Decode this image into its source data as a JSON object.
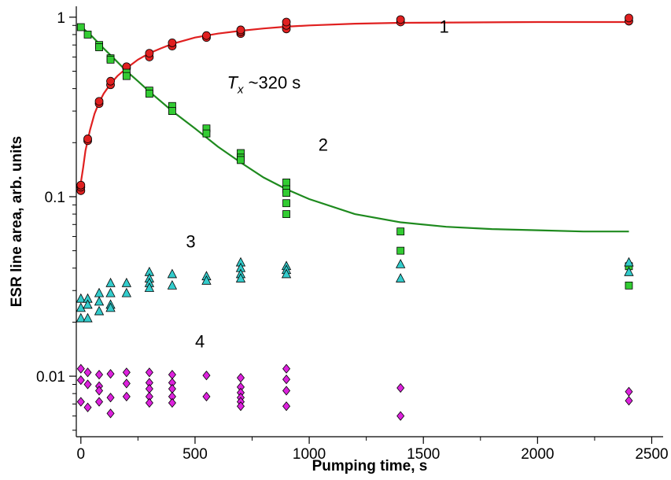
{
  "chart_data": {
    "type": "scatter",
    "title": "",
    "xlabel": "Pumping time, s",
    "ylabel": "ESR line area, arb. units",
    "xlim": [
      -20,
      2550
    ],
    "ylim": [
      0.0046,
      1.15
    ],
    "yscale": "log",
    "x_ticks": [
      0,
      500,
      1000,
      1500,
      2000,
      2500
    ],
    "x_tick_labels": [
      "0",
      "500",
      "1000",
      "1500",
      "2000",
      "2500"
    ],
    "y_ticks": [
      0.01,
      0.1,
      1
    ],
    "y_tick_labels": [
      "0.01",
      "0.1",
      "1"
    ],
    "grid": false,
    "legend": "none",
    "series": [
      {
        "id": "1",
        "marker": "circle",
        "color": "#e02020",
        "points": [
          [
            0,
            0.108
          ],
          [
            0,
            0.113
          ],
          [
            0,
            0.116
          ],
          [
            30,
            0.205
          ],
          [
            30,
            0.21
          ],
          [
            80,
            0.33
          ],
          [
            80,
            0.34
          ],
          [
            130,
            0.42
          ],
          [
            130,
            0.44
          ],
          [
            200,
            0.52
          ],
          [
            200,
            0.53
          ],
          [
            300,
            0.6
          ],
          [
            300,
            0.63
          ],
          [
            400,
            0.69
          ],
          [
            400,
            0.72
          ],
          [
            550,
            0.77
          ],
          [
            550,
            0.79
          ],
          [
            700,
            0.81
          ],
          [
            700,
            0.83
          ],
          [
            700,
            0.85
          ],
          [
            900,
            0.86
          ],
          [
            900,
            0.9
          ],
          [
            900,
            0.94
          ],
          [
            1400,
            0.94
          ],
          [
            1400,
            0.97
          ],
          [
            2400,
            0.95
          ],
          [
            2400,
            0.99
          ]
        ]
      },
      {
        "id": "2",
        "marker": "square",
        "color": "#33cc33",
        "points": [
          [
            0,
            0.88
          ],
          [
            30,
            0.8
          ],
          [
            80,
            0.7
          ],
          [
            80,
            0.68
          ],
          [
            130,
            0.59
          ],
          [
            130,
            0.58
          ],
          [
            200,
            0.49
          ],
          [
            200,
            0.47
          ],
          [
            300,
            0.39
          ],
          [
            300,
            0.375
          ],
          [
            400,
            0.32
          ],
          [
            400,
            0.3
          ],
          [
            550,
            0.24
          ],
          [
            550,
            0.225
          ],
          [
            700,
            0.175
          ],
          [
            700,
            0.165
          ],
          [
            700,
            0.16
          ],
          [
            900,
            0.12
          ],
          [
            900,
            0.11
          ],
          [
            900,
            0.105
          ],
          [
            900,
            0.092
          ],
          [
            900,
            0.08
          ],
          [
            1400,
            0.064
          ],
          [
            1400,
            0.05
          ],
          [
            2400,
            0.041
          ],
          [
            2400,
            0.032
          ]
        ]
      },
      {
        "id": "3",
        "marker": "triangle",
        "color": "#33cccc",
        "points": [
          [
            0,
            0.027
          ],
          [
            0,
            0.024
          ],
          [
            0,
            0.021
          ],
          [
            30,
            0.027
          ],
          [
            30,
            0.025
          ],
          [
            30,
            0.021
          ],
          [
            80,
            0.029
          ],
          [
            80,
            0.026
          ],
          [
            80,
            0.023
          ],
          [
            130,
            0.033
          ],
          [
            130,
            0.029
          ],
          [
            130,
            0.025
          ],
          [
            130,
            0.024
          ],
          [
            200,
            0.033
          ],
          [
            200,
            0.029
          ],
          [
            300,
            0.038
          ],
          [
            300,
            0.035
          ],
          [
            300,
            0.033
          ],
          [
            300,
            0.031
          ],
          [
            400,
            0.037
          ],
          [
            400,
            0.032
          ],
          [
            550,
            0.036
          ],
          [
            550,
            0.034
          ],
          [
            700,
            0.043
          ],
          [
            700,
            0.04
          ],
          [
            700,
            0.037
          ],
          [
            700,
            0.035
          ],
          [
            900,
            0.041
          ],
          [
            900,
            0.039
          ],
          [
            900,
            0.037
          ],
          [
            1400,
            0.042
          ],
          [
            1400,
            0.035
          ],
          [
            2400,
            0.043
          ],
          [
            2400,
            0.038
          ]
        ]
      },
      {
        "id": "4",
        "marker": "diamond",
        "color": "#dd22dd",
        "points": [
          [
            0,
            0.011
          ],
          [
            0,
            0.0095
          ],
          [
            0,
            0.0072
          ],
          [
            30,
            0.0105
          ],
          [
            30,
            0.009
          ],
          [
            30,
            0.0067
          ],
          [
            80,
            0.0102
          ],
          [
            80,
            0.0088
          ],
          [
            80,
            0.0083
          ],
          [
            80,
            0.0072
          ],
          [
            130,
            0.0103
          ],
          [
            130,
            0.0076
          ],
          [
            130,
            0.0062
          ],
          [
            200,
            0.0105
          ],
          [
            200,
            0.0091
          ],
          [
            200,
            0.0077
          ],
          [
            300,
            0.0105
          ],
          [
            300,
            0.0092
          ],
          [
            300,
            0.0085
          ],
          [
            300,
            0.0077
          ],
          [
            300,
            0.0071
          ],
          [
            400,
            0.0102
          ],
          [
            400,
            0.0092
          ],
          [
            400,
            0.0085
          ],
          [
            400,
            0.0077
          ],
          [
            400,
            0.0071
          ],
          [
            550,
            0.0101
          ],
          [
            550,
            0.0077
          ],
          [
            700,
            0.0098
          ],
          [
            700,
            0.0087
          ],
          [
            700,
            0.0081
          ],
          [
            700,
            0.0076
          ],
          [
            700,
            0.0072
          ],
          [
            700,
            0.0068
          ],
          [
            900,
            0.011
          ],
          [
            900,
            0.0096
          ],
          [
            900,
            0.0083
          ],
          [
            900,
            0.0068
          ],
          [
            1400,
            0.0086
          ],
          [
            1400,
            0.006
          ],
          [
            2400,
            0.0082
          ],
          [
            2400,
            0.0073
          ]
        ]
      }
    ],
    "fits": [
      {
        "series_id": "1",
        "color": "#e02020",
        "points": [
          [
            0,
            0.12
          ],
          [
            10,
            0.145
          ],
          [
            20,
            0.18
          ],
          [
            40,
            0.235
          ],
          [
            60,
            0.29
          ],
          [
            80,
            0.335
          ],
          [
            100,
            0.375
          ],
          [
            130,
            0.425
          ],
          [
            160,
            0.47
          ],
          [
            200,
            0.52
          ],
          [
            250,
            0.58
          ],
          [
            300,
            0.63
          ],
          [
            350,
            0.67
          ],
          [
            400,
            0.71
          ],
          [
            500,
            0.77
          ],
          [
            600,
            0.81
          ],
          [
            700,
            0.84
          ],
          [
            800,
            0.865
          ],
          [
            900,
            0.885
          ],
          [
            1000,
            0.9
          ],
          [
            1200,
            0.92
          ],
          [
            1400,
            0.93
          ],
          [
            1700,
            0.935
          ],
          [
            2000,
            0.94
          ],
          [
            2400,
            0.94
          ]
        ]
      },
      {
        "series_id": "2",
        "color": "#1e8a1e",
        "points": [
          [
            0,
            0.89
          ],
          [
            50,
            0.78
          ],
          [
            100,
            0.67
          ],
          [
            150,
            0.58
          ],
          [
            200,
            0.5
          ],
          [
            250,
            0.44
          ],
          [
            300,
            0.385
          ],
          [
            400,
            0.3
          ],
          [
            500,
            0.24
          ],
          [
            600,
            0.19
          ],
          [
            700,
            0.155
          ],
          [
            800,
            0.128
          ],
          [
            900,
            0.11
          ],
          [
            1000,
            0.097
          ],
          [
            1200,
            0.08
          ],
          [
            1400,
            0.072
          ],
          [
            1600,
            0.068
          ],
          [
            1800,
            0.066
          ],
          [
            2000,
            0.065
          ],
          [
            2200,
            0.064
          ],
          [
            2400,
            0.064
          ]
        ]
      }
    ],
    "annotations": [
      {
        "id": "label-1",
        "text": "1",
        "x": 1570,
        "y": 0.82
      },
      {
        "id": "label-2",
        "text": "2",
        "x": 1040,
        "y": 0.18
      },
      {
        "id": "label-3",
        "text": "3",
        "x": 460,
        "y": 0.052
      },
      {
        "id": "label-4",
        "text": "4",
        "x": 500,
        "y": 0.0145
      }
    ],
    "tx_annotation": {
      "symbol": "T",
      "subscript": "x",
      "rest": " ~320 s",
      "x": 640,
      "y": 0.4
    }
  }
}
